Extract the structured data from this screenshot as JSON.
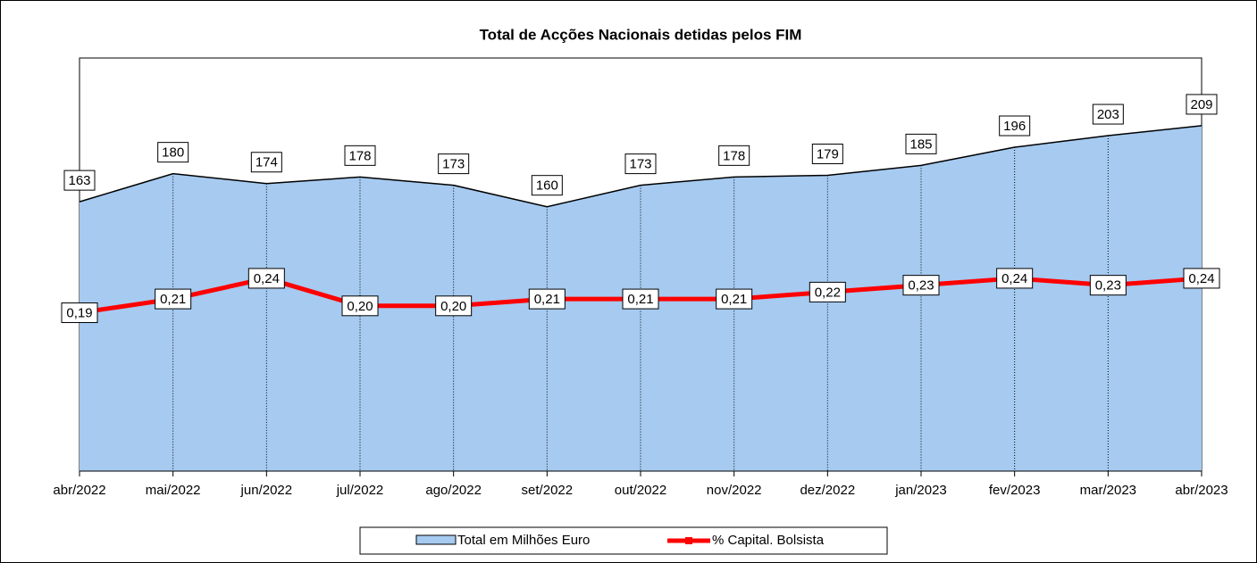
{
  "chart_data": {
    "type": "area-line",
    "title": "Total de Acções Nacionais detidas pelos FIM",
    "categories": [
      "abr/2022",
      "mai/2022",
      "jun/2022",
      "jul/2022",
      "ago/2022",
      "set/2022",
      "out/2022",
      "nov/2022",
      "dez/2022",
      "jan/2023",
      "fev/2023",
      "mar/2023",
      "abr/2023"
    ],
    "ylim": [
      0,
      250
    ],
    "y2lim": [
      -0.04,
      0.56
    ],
    "series": [
      {
        "name": "Total em Milhões Euro",
        "color": "#a6caf0",
        "values": [
          163,
          180,
          174,
          178,
          173,
          160,
          173,
          178,
          179,
          185,
          196,
          203,
          209
        ]
      },
      {
        "name": "% Capital. Bolsista",
        "color": "#ff0000",
        "axis": "y2",
        "values": [
          0.19,
          0.21,
          0.24,
          0.2,
          0.2,
          0.21,
          0.21,
          0.21,
          0.22,
          0.23,
          0.24,
          0.23,
          0.24
        ],
        "value_labels": [
          "0,19",
          "0,21",
          "0,24",
          "0,20",
          "0,20",
          "0,21",
          "0,21",
          "0,21",
          "0,22",
          "0,23",
          "0,24",
          "0,23",
          "0,24"
        ]
      }
    ],
    "legend": "bottom"
  }
}
